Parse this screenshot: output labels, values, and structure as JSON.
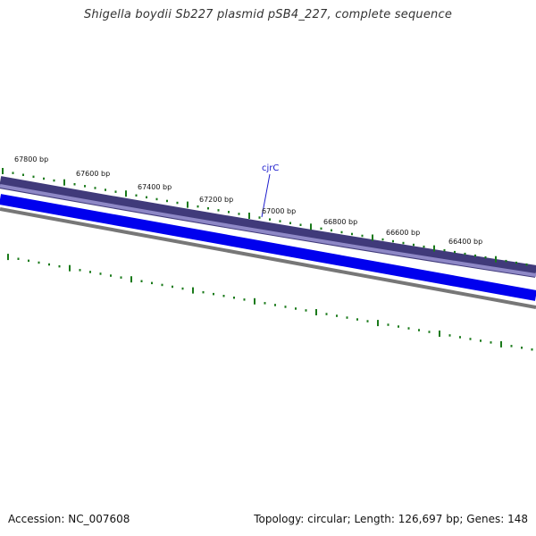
{
  "header": {
    "title": "Shigella boydii Sb227 plasmid pSB4_227, complete sequence"
  },
  "footer": {
    "accession_label": "Accession:",
    "accession": "NC_007608",
    "topology_label": "Topology:",
    "topology": "circular",
    "length_label": "Length:",
    "length": "126,697 bp",
    "genes_label": "Genes:",
    "genes": "148"
  },
  "ruler": {
    "labels": [
      "67800 bp",
      "67600 bp",
      "67400 bp",
      "67200 bp",
      "67000 bp",
      "66800 bp",
      "66600 bp",
      "66400 bp"
    ]
  },
  "genes": [
    {
      "name": "cjrC"
    }
  ],
  "colors": {
    "outer_track": "#403a7a",
    "outer_track_inner": "#8e88c6",
    "gene_track": "#0000ee",
    "backbone": "#777777",
    "ticks": "#1a7a1a",
    "gene_label": "#1a1acc"
  }
}
